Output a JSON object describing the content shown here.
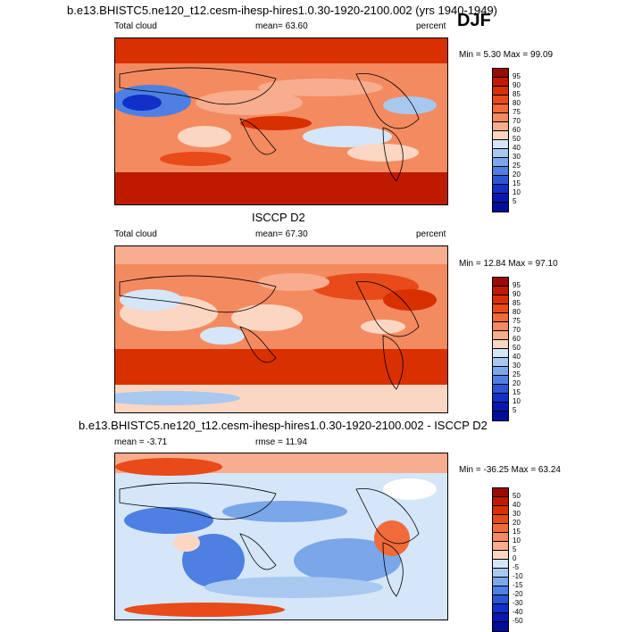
{
  "season": "DJF",
  "panels": [
    {
      "title": "b.e13.BHISTC5.ne120_t12.cesm-ihesp-hires1.0.30-1920-2100.002 (yrs 1940-1949)",
      "left": "Total cloud",
      "center": "mean=  63.60",
      "right": "percent",
      "minmax": "Min =   5.30 Max =  99.09",
      "levels": [
        "95",
        "90",
        "85",
        "80",
        "75",
        "70",
        "60",
        "50",
        "40",
        "30",
        "25",
        "20",
        "15",
        "10",
        "5"
      ]
    },
    {
      "title": "ISCCP D2",
      "left": "Total cloud",
      "center": "mean=  67.30",
      "right": "percent",
      "minmax": "Min =  12.84 Max =  97.10",
      "levels": [
        "95",
        "90",
        "85",
        "80",
        "75",
        "70",
        "60",
        "50",
        "40",
        "30",
        "25",
        "20",
        "15",
        "10",
        "5"
      ]
    },
    {
      "title": "b.e13.BHISTC5.ne120_t12.cesm-ihesp-hires1.0.30-1920-2100.002 - ISCCP D2",
      "left": "mean =  -3.71",
      "center": "rmse =  11.94",
      "right": "",
      "minmax": "Min = -36.25 Max =  63.24",
      "levels": [
        "50",
        "40",
        "30",
        "20",
        "15",
        "10",
        "5",
        "0",
        "-5",
        "-10",
        "-15",
        "-20",
        "-30",
        "-40",
        "-50"
      ]
    }
  ],
  "colors": {
    "palette": [
      "#9b0a00",
      "#bf1a00",
      "#d93000",
      "#e84a1a",
      "#f06a3a",
      "#f48a60",
      "#f7ad8e",
      "#fbd6c2",
      "#ffffff",
      "#d4e6f8",
      "#a8c8f0",
      "#7aa6ea",
      "#4d80e2",
      "#2a56d6",
      "#1030c8",
      "#000c9a"
    ]
  }
}
